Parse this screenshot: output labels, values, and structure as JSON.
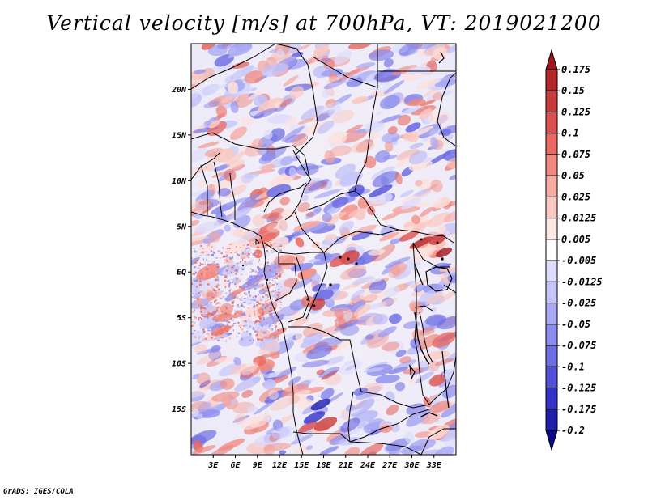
{
  "title": "Vertical velocity [m/s] at 700hPa, VT: 2019021200",
  "footer": "GrADS: IGES/COLA",
  "map": {
    "lon_range": [
      0,
      36
    ],
    "lat_range": [
      -20,
      25
    ],
    "lat_ticks": [
      {
        "value": 20,
        "label": "20N"
      },
      {
        "value": 15,
        "label": "15N"
      },
      {
        "value": 10,
        "label": "10N"
      },
      {
        "value": 5,
        "label": "5N"
      },
      {
        "value": 0,
        "label": "EQ"
      },
      {
        "value": -5,
        "label": "5S"
      },
      {
        "value": -10,
        "label": "10S"
      },
      {
        "value": -15,
        "label": "15S"
      }
    ],
    "lon_ticks": [
      {
        "value": 3,
        "label": "3E"
      },
      {
        "value": 6,
        "label": "6E"
      },
      {
        "value": 9,
        "label": "9E"
      },
      {
        "value": 12,
        "label": "12E"
      },
      {
        "value": 15,
        "label": "15E"
      },
      {
        "value": 18,
        "label": "18E"
      },
      {
        "value": 21,
        "label": "21E"
      },
      {
        "value": 24,
        "label": "24E"
      },
      {
        "value": 27,
        "label": "27E"
      },
      {
        "value": 30,
        "label": "30E"
      },
      {
        "value": 33,
        "label": "33E"
      }
    ]
  },
  "colorbar": {
    "labels": [
      "0.175",
      "0.15",
      "0.125",
      "0.1",
      "0.075",
      "0.05",
      "0.025",
      "0.0125",
      "0.005",
      "-0.005",
      "-0.0125",
      "-0.025",
      "-0.05",
      "-0.075",
      "-0.1",
      "-0.125",
      "-0.175",
      "-0.2"
    ],
    "colors": [
      "#a0141e",
      "#b4282a",
      "#c83c3c",
      "#dc5050",
      "#e86a62",
      "#f08a80",
      "#f6aaa0",
      "#fac8c0",
      "#fde8e4",
      "#ffffff",
      "#dcdcfc",
      "#c4c4fa",
      "#a8a8f4",
      "#8c8cee",
      "#6e6ee4",
      "#5050d8",
      "#3232c8",
      "#1e1eaa",
      "#0a0a8c"
    ]
  }
}
